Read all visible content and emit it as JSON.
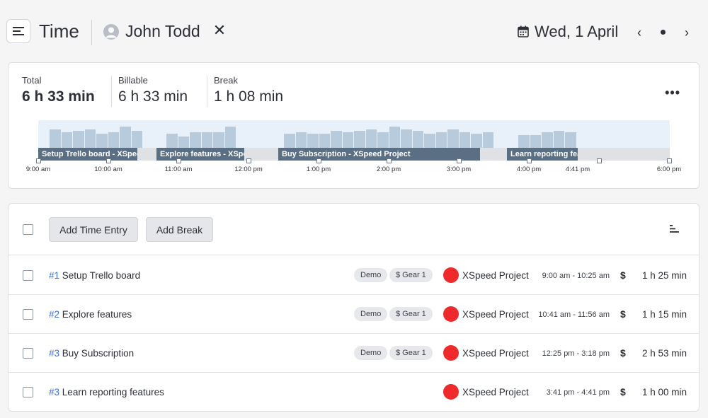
{
  "header": {
    "title": "Time",
    "user_name": "John Todd",
    "close_glyph": "✕",
    "date": "Wed, 1 April",
    "prev_glyph": "‹",
    "next_glyph": "›"
  },
  "summary": {
    "total_label": "Total",
    "total_value": "6 h 33 min",
    "billable_label": "Billable",
    "billable_value": "6 h 33 min",
    "break_label": "Break",
    "break_value": "1 h 08 min",
    "more_glyph": "•••"
  },
  "timeline": {
    "segments": [
      {
        "label": "Setup Trello board - XSpeed Project"
      },
      {
        "label": "Explore features - XSpeed Project"
      },
      {
        "label": "Buy Subscription - XSpeed Project"
      },
      {
        "label": "Learn reporting features - XSpeed Project"
      }
    ],
    "ticks": [
      "9:00 am",
      "10:00 am",
      "11:00 am",
      "12:00 pm",
      "1:00 pm",
      "2:00 pm",
      "3:00 pm",
      "4:00 pm",
      "4:41 pm",
      "6:00 pm"
    ],
    "segment_color": "#5a6e84",
    "activity_color": "#b8cbdc"
  },
  "toolbar": {
    "add_time_entry": "Add Time Entry",
    "add_break": "Add Break"
  },
  "entries": [
    {
      "num": "#1",
      "title": "Setup Trello board",
      "tags": [
        "Demo",
        "$ Gear 1"
      ],
      "project": "XSpeed Project",
      "project_color": "#ee2a2a",
      "range": "9:00 am - 10:25 am",
      "billable": "$",
      "duration": "1 h 25 min"
    },
    {
      "num": "#2",
      "title": "Explore features",
      "tags": [
        "Demo",
        "$ Gear 1"
      ],
      "project": "XSpeed Project",
      "project_color": "#ee2a2a",
      "range": "10:41 am - 11:56 am",
      "billable": "$",
      "duration": "1 h 15 min"
    },
    {
      "num": "#3",
      "title": "Buy Subscription",
      "tags": [
        "Demo",
        "$ Gear 1"
      ],
      "project": "XSpeed Project",
      "project_color": "#ee2a2a",
      "range": "12:25 pm - 3:18 pm",
      "billable": "$",
      "duration": "2 h 53 min"
    },
    {
      "num": "#3",
      "title": "Learn reporting features",
      "tags": [],
      "project": "XSpeed Project",
      "project_color": "#ee2a2a",
      "range": "3:41 pm - 4:41 pm",
      "billable": "$",
      "duration": "1 h 00 min"
    }
  ]
}
